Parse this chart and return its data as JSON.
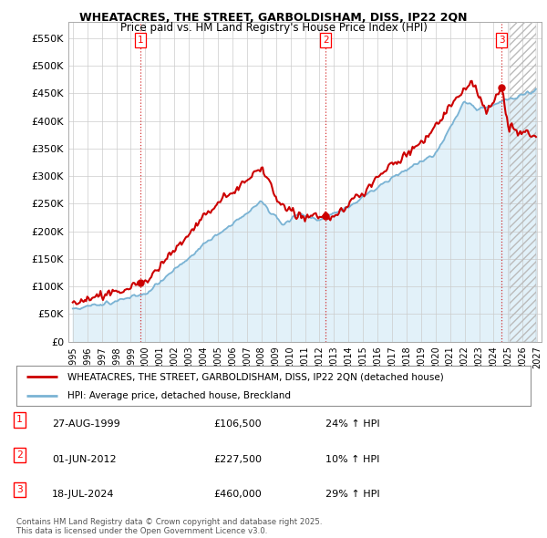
{
  "title1": "WHEATACRES, THE STREET, GARBOLDISHAM, DISS, IP22 2QN",
  "title2": "Price paid vs. HM Land Registry's House Price Index (HPI)",
  "legend_line1": "WHEATACRES, THE STREET, GARBOLDISHAM, DISS, IP22 2QN (detached house)",
  "legend_line2": "HPI: Average price, detached house, Breckland",
  "footnote": "Contains HM Land Registry data © Crown copyright and database right 2025.\nThis data is licensed under the Open Government Licence v3.0.",
  "transactions": [
    {
      "label": "1",
      "date": "27-AUG-1999",
      "price": "£106,500",
      "change": "24% ↑ HPI",
      "year": 1999.65,
      "value": 106500
    },
    {
      "label": "2",
      "date": "01-JUN-2012",
      "price": "£227,500",
      "change": "10% ↑ HPI",
      "year": 2012.42,
      "value": 227500
    },
    {
      "label": "3",
      "date": "18-JUL-2024",
      "price": "£460,000",
      "change": "29% ↑ HPI",
      "year": 2024.54,
      "value": 460000
    }
  ],
  "hpi_color": "#7ab3d4",
  "hpi_fill_color": "#d0e8f5",
  "price_color": "#cc0000",
  "background_color": "#ffffff",
  "grid_color": "#cccccc",
  "ylim": [
    0,
    580000
  ],
  "xlim_start": 1994.7,
  "xlim_end": 2027.3,
  "hatch_start": 2025.0,
  "yticks": [
    0,
    50000,
    100000,
    150000,
    200000,
    250000,
    300000,
    350000,
    400000,
    450000,
    500000,
    550000
  ],
  "xticks": [
    1995,
    1996,
    1997,
    1998,
    1999,
    2000,
    2001,
    2002,
    2003,
    2004,
    2005,
    2006,
    2007,
    2008,
    2009,
    2010,
    2011,
    2012,
    2013,
    2014,
    2015,
    2016,
    2017,
    2018,
    2019,
    2020,
    2021,
    2022,
    2023,
    2024,
    2025,
    2026,
    2027
  ]
}
